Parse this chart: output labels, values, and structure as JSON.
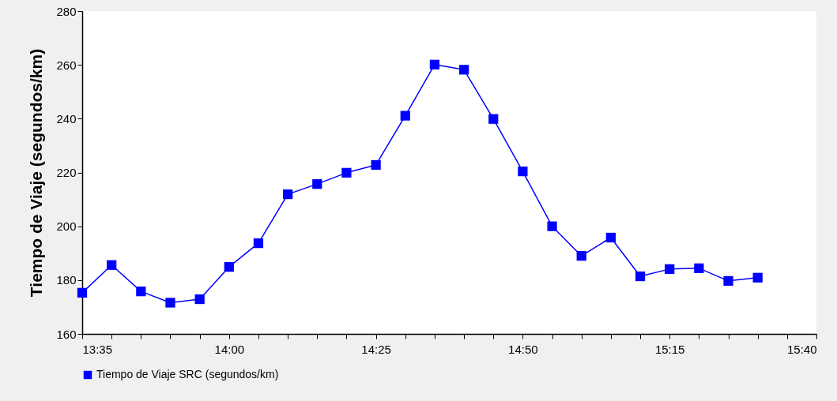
{
  "chart_data": {
    "type": "line",
    "ylabel": "Tiempo de Viaje (segundos/km)",
    "x": [
      13.5833,
      13.6667,
      13.75,
      13.8333,
      13.9167,
      14,
      14.0833,
      14.1667,
      14.25,
      14.3333,
      14.4167,
      14.5,
      14.5833,
      14.6667,
      14.75,
      14.8333,
      14.9167,
      15,
      15.0833,
      15.1667,
      15.25,
      15.3333,
      15.4167,
      15.5
    ],
    "series": [
      {
        "name": "Tiempo de Viaje SRC (segundos/km)",
        "color": "#0000ff",
        "values": [
          175.3,
          185.6,
          175.8,
          171.6,
          172.9,
          184.9,
          193.7,
          211.9,
          215.7,
          219.9,
          222.8,
          241.1,
          260.1,
          258.2,
          239.9,
          220.4,
          200,
          189,
          195.8,
          181.4,
          184.1,
          184.4,
          179.7,
          180.9
        ]
      }
    ],
    "xlim": [
      13.5833,
      15.6667
    ],
    "xticks": [
      {
        "value": 13.5833,
        "label": "13:35"
      },
      {
        "value": 13.6667,
        "label": null
      },
      {
        "value": 13.75,
        "label": null
      },
      {
        "value": 13.8333,
        "label": null
      },
      {
        "value": 13.9167,
        "label": null
      },
      {
        "value": 14,
        "label": "14:00"
      },
      {
        "value": 14.0833,
        "label": null
      },
      {
        "value": 14.1667,
        "label": null
      },
      {
        "value": 14.25,
        "label": null
      },
      {
        "value": 14.3333,
        "label": null
      },
      {
        "value": 14.4167,
        "label": "14:25"
      },
      {
        "value": 14.5,
        "label": null
      },
      {
        "value": 14.5833,
        "label": null
      },
      {
        "value": 14.6667,
        "label": null
      },
      {
        "value": 14.75,
        "label": null
      },
      {
        "value": 14.8333,
        "label": "14:50"
      },
      {
        "value": 14.9167,
        "label": null
      },
      {
        "value": 15,
        "label": null
      },
      {
        "value": 15.0833,
        "label": null
      },
      {
        "value": 15.1667,
        "label": null
      },
      {
        "value": 15.25,
        "label": "15:15"
      },
      {
        "value": 15.3333,
        "label": null
      },
      {
        "value": 15.4167,
        "label": null
      },
      {
        "value": 15.5,
        "label": null
      },
      {
        "value": 15.5833,
        "label": null
      },
      {
        "value": 15.6667,
        "label": "15:40"
      }
    ],
    "ylim": [
      160,
      280
    ],
    "yticks": [
      160,
      180,
      200,
      220,
      240,
      260,
      280
    ],
    "marker": "square",
    "line_style": "solid",
    "legend": "bottom"
  }
}
